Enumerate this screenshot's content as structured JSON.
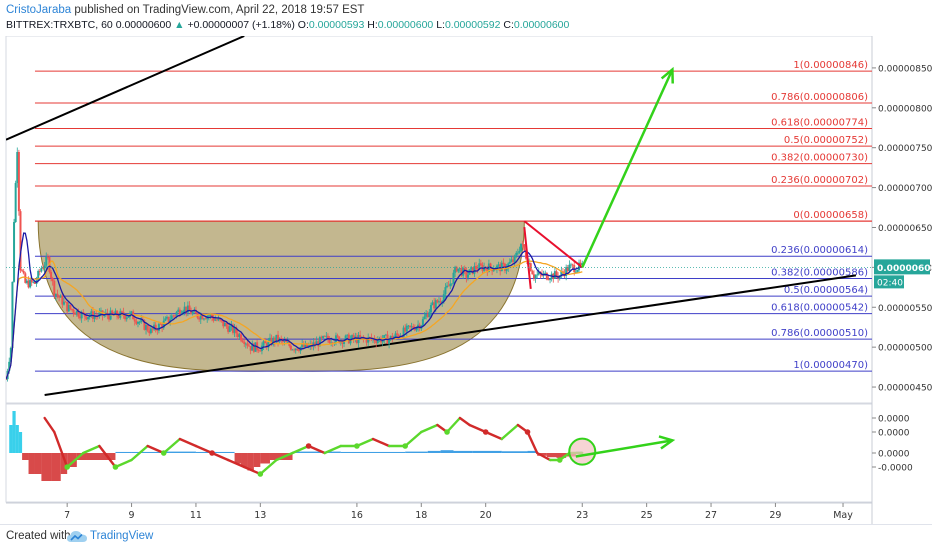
{
  "header": {
    "author": "CristoJaraba",
    "published_text": " published on TradingView.com, April 22, 2018 19:57 EST",
    "symbol": "BITTREX:TRXBTC, 60",
    "last": "0.00000600",
    "change_triangle": "▲",
    "change": "+0.00000007 (+1.18%)",
    "o_label": "O:",
    "o": "0.00000593",
    "h_label": "H:",
    "h": "0.00000600",
    "l_label": "L:",
    "l": "0.00000592",
    "c_label": "C:",
    "c": "0.00000600"
  },
  "footer": {
    "created_with": "Created with",
    "brand": "TradingView",
    "logo_icon": "tradingview-cloud-icon"
  },
  "colors": {
    "candle_up": "#26a69a",
    "candle_down": "#ef5350",
    "fib_upper": "#e53935",
    "fib_lower": "#3f3fc8",
    "cup_fill": "#9e8a4a",
    "ma_fast": "#1a1aa6",
    "ma_slow": "#f5a623",
    "trendline": "#000000",
    "arrow": "#33d21a",
    "price_badge": "#26a69a",
    "osc_green": "#5bd82c",
    "osc_red": "#d12a2a",
    "osc_blue": "#1f8fe0"
  },
  "chart_data": [
    {
      "type": "candlestick",
      "title": "",
      "y_axis_side": "right",
      "ylim": [
        4.3e-06,
        8.9e-06
      ],
      "y_ticks": [
        "0.00000850",
        "0.00000800",
        "0.00000750",
        "0.00000700",
        "0.00000650",
        "0.00000600",
        "0.00000550",
        "0.00000500",
        "0.00000450"
      ],
      "x_ticks": [
        "7",
        "9",
        "11",
        "13",
        "16",
        "18",
        "20",
        "23",
        "25",
        "27",
        "29",
        "May"
      ],
      "x_tick_values": [
        7,
        9,
        11,
        13,
        16,
        18,
        20,
        23,
        25,
        27,
        29,
        31.1
      ],
      "xlim": [
        5.1,
        32
      ],
      "last_price": "0.00000600",
      "countdown": "02:40",
      "price_path": [
        [
          5.1,
          4.6e-06
        ],
        [
          5.25,
          5e-06
        ],
        [
          5.35,
          6.6e-06
        ],
        [
          5.45,
          7.5e-06
        ],
        [
          5.55,
          6e-06
        ],
        [
          5.7,
          5.8e-06
        ],
        [
          6.0,
          5.8e-06
        ],
        [
          6.2,
          6e-06
        ],
        [
          6.4,
          6.1e-06
        ],
        [
          6.6,
          5.7e-06
        ],
        [
          7.0,
          5.5e-06
        ],
        [
          7.5,
          5.4e-06
        ],
        [
          8.0,
          5.4e-06
        ],
        [
          8.5,
          5.4e-06
        ],
        [
          9.0,
          5.4e-06
        ],
        [
          9.3,
          5.3e-06
        ],
        [
          9.6,
          5.2e-06
        ],
        [
          10.0,
          5.3e-06
        ],
        [
          10.3,
          5.4e-06
        ],
        [
          10.6,
          5.5e-06
        ],
        [
          11.0,
          5.4e-06
        ],
        [
          11.4,
          5.4e-06
        ],
        [
          11.8,
          5.3e-06
        ],
        [
          12.2,
          5.2e-06
        ],
        [
          12.5,
          5.1e-06
        ],
        [
          12.7,
          5e-06
        ],
        [
          13.0,
          5e-06
        ],
        [
          13.5,
          5.1e-06
        ],
        [
          14.0,
          5e-06
        ],
        [
          14.5,
          5e-06
        ],
        [
          15.0,
          5.1e-06
        ],
        [
          15.5,
          5.1e-06
        ],
        [
          16.0,
          5.1e-06
        ],
        [
          16.5,
          5.1e-06
        ],
        [
          17.0,
          5.1e-06
        ],
        [
          17.5,
          5.2e-06
        ],
        [
          18.0,
          5.3e-06
        ],
        [
          18.3,
          5.5e-06
        ],
        [
          18.6,
          5.6e-06
        ],
        [
          18.9,
          5.8e-06
        ],
        [
          19.1,
          6e-06
        ],
        [
          19.4,
          5.9e-06
        ],
        [
          19.7,
          6e-06
        ],
        [
          20.0,
          6e-06
        ],
        [
          20.3,
          6e-06
        ],
        [
          20.6,
          6e-06
        ],
        [
          20.9,
          6.1e-06
        ],
        [
          21.1,
          6.3e-06
        ],
        [
          21.3,
          6.1e-06
        ],
        [
          21.5,
          5.9e-06
        ],
        [
          21.7,
          5.9e-06
        ],
        [
          22.0,
          5.9e-06
        ],
        [
          22.3,
          5.9e-06
        ],
        [
          22.6,
          6e-06
        ],
        [
          23.0,
          6e-06
        ]
      ],
      "candle_range": [
        5.1,
        23.0
      ],
      "fibonacci_upper": [
        {
          "ratio": "1",
          "price": "0.00000846",
          "value": 8.46e-06
        },
        {
          "ratio": "0.786",
          "price": "0.00000806",
          "value": 8.06e-06
        },
        {
          "ratio": "0.618",
          "price": "0.00000774",
          "value": 7.74e-06
        },
        {
          "ratio": "0.5",
          "price": "0.00000752",
          "value": 7.52e-06
        },
        {
          "ratio": "0.382",
          "price": "0.00000730",
          "value": 7.3e-06
        },
        {
          "ratio": "0.236",
          "price": "0.00000702",
          "value": 7.02e-06
        },
        {
          "ratio": "0",
          "price": "0.00000658",
          "value": 6.58e-06
        }
      ],
      "fibonacci_lower": [
        {
          "ratio": "0.236",
          "price": "0.00000614",
          "value": 6.14e-06
        },
        {
          "ratio": "0.382",
          "price": "0.00000586",
          "value": 5.86e-06
        },
        {
          "ratio": "0.5",
          "price": "0.00000564",
          "value": 5.64e-06
        },
        {
          "ratio": "0.618",
          "price": "0.00000542",
          "value": 5.42e-06
        },
        {
          "ratio": "0.786",
          "price": "0.00000510",
          "value": 5.1e-06
        },
        {
          "ratio": "1",
          "price": "0.00000470",
          "value": 4.7e-06
        }
      ],
      "cup": {
        "x_start": 6.1,
        "x_end": 21.2,
        "rim": 6.58e-06,
        "bottom": 4.7e-06
      },
      "trendline_upper": [
        [
          5.1,
          7.6e-06
        ],
        [
          12.5,
          8.9e-06
        ]
      ],
      "trendline_lower": [
        [
          6.3,
          4.4e-06
        ],
        [
          31.5,
          5.9e-06
        ]
      ],
      "handle": {
        "top": [
          21.2,
          6.58e-06
        ],
        "apex": [
          23.0,
          6e-06
        ],
        "bottom": [
          21.4,
          5.73e-06
        ]
      },
      "projection_arrow": [
        [
          23.0,
          6e-06
        ],
        [
          25.8,
          8.48e-06
        ]
      ]
    },
    {
      "type": "area",
      "title": "",
      "ylim": [
        -7e-05,
        7e-05
      ],
      "y_ticks": [
        "0.0000",
        "0.0000",
        "0.0000",
        "-0.0000"
      ],
      "y_tick_values": [
        5e-05,
        3e-05,
        0.0,
        -2e-05
      ],
      "oscillator_line": [
        [
          6.3,
          5e-05
        ],
        [
          6.6,
          3e-05
        ],
        [
          7.0,
          -2e-05
        ],
        [
          7.5,
          0.0
        ],
        [
          8.0,
          1e-05
        ],
        [
          8.5,
          -2e-05
        ],
        [
          9.0,
          -1e-05
        ],
        [
          9.5,
          1e-05
        ],
        [
          10.0,
          0.0
        ],
        [
          10.5,
          2e-05
        ],
        [
          11.0,
          1e-05
        ],
        [
          11.5,
          0.0
        ],
        [
          12.0,
          -1e-05
        ],
        [
          12.5,
          -2e-05
        ],
        [
          13.0,
          -3e-05
        ],
        [
          13.5,
          -1e-05
        ],
        [
          14.0,
          0.0
        ],
        [
          14.5,
          1e-05
        ],
        [
          15.0,
          0.0
        ],
        [
          15.5,
          1e-05
        ],
        [
          16.0,
          1e-05
        ],
        [
          16.5,
          2e-05
        ],
        [
          17.0,
          1e-05
        ],
        [
          17.5,
          1e-05
        ],
        [
          18.0,
          3e-05
        ],
        [
          18.5,
          4e-05
        ],
        [
          18.8,
          3e-05
        ],
        [
          19.2,
          5e-05
        ],
        [
          19.5,
          4e-05
        ],
        [
          20.0,
          3e-05
        ],
        [
          20.5,
          2e-05
        ],
        [
          21.0,
          4e-05
        ],
        [
          21.3,
          3e-05
        ],
        [
          21.6,
          0.0
        ],
        [
          22.0,
          -1e-05
        ],
        [
          22.3,
          -1e-05
        ],
        [
          22.6,
          0.0
        ],
        [
          23.0,
          0.0
        ]
      ],
      "histogram": [
        [
          5.2,
          4e-05
        ],
        [
          5.3,
          6e-05
        ],
        [
          5.4,
          4e-05
        ],
        [
          5.5,
          3e-05
        ],
        [
          5.6,
          -1e-05
        ],
        [
          5.8,
          -3e-05
        ],
        [
          6.0,
          -3e-05
        ],
        [
          6.2,
          -4e-05
        ],
        [
          6.5,
          -4e-05
        ],
        [
          6.8,
          -3e-05
        ],
        [
          7.0,
          -2e-05
        ],
        [
          7.3,
          -1e-05
        ],
        [
          7.6,
          -1e-05
        ],
        [
          8.5,
          1.5e-06
        ],
        [
          9.0,
          1.5e-06
        ],
        [
          10.0,
          2e-06
        ],
        [
          11.0,
          1.5e-06
        ],
        [
          12.2,
          -1.5e-05
        ],
        [
          12.4,
          -2e-05
        ],
        [
          12.6,
          -2.5e-05
        ],
        [
          12.8,
          -2e-05
        ],
        [
          13.0,
          -1.5e-05
        ],
        [
          13.3,
          -1e-05
        ],
        [
          14.0,
          2e-06
        ],
        [
          15.5,
          1.5e-06
        ],
        [
          16.5,
          1.5e-06
        ],
        [
          17.5,
          2e-06
        ],
        [
          18.2,
          3e-06
        ],
        [
          18.6,
          4e-06
        ],
        [
          19.0,
          3e-06
        ],
        [
          19.6,
          3e-06
        ],
        [
          20.5,
          2.5e-06
        ],
        [
          21.3,
          3e-06
        ],
        [
          21.6,
          -4e-06
        ],
        [
          21.9,
          -6e-06
        ],
        [
          22.2,
          -7e-06
        ],
        [
          22.5,
          -5e-06
        ],
        [
          22.8,
          2e-06
        ]
      ],
      "highlight_circle": [
        23.0,
        2e-06
      ],
      "projection_arrow": [
        [
          22.8,
          -5e-06
        ],
        [
          25.8,
          1.8e-05
        ]
      ]
    }
  ]
}
